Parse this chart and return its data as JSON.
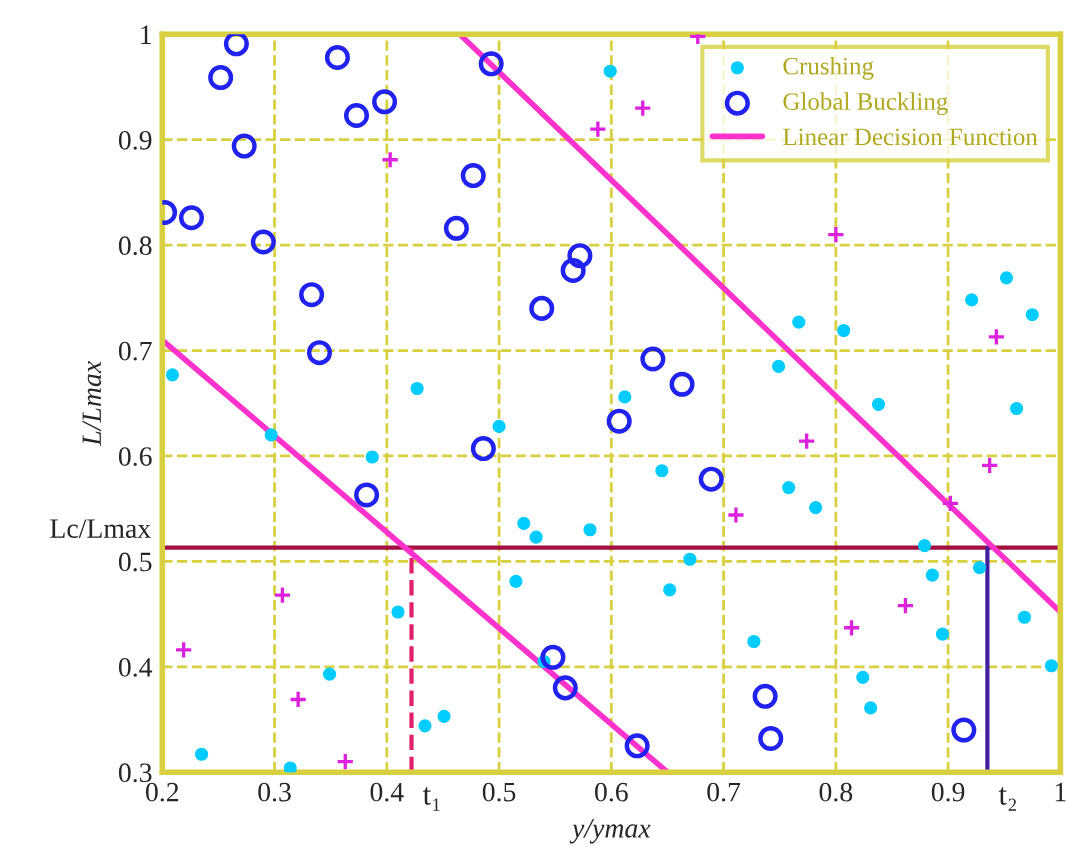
{
  "chart_data": {
    "type": "scatter",
    "xlabel": "y/ymax",
    "ylabel": "L/Lmax",
    "xlim": [
      0.2,
      1.0
    ],
    "ylim": [
      0.3,
      1.0
    ],
    "xticks": [
      0.2,
      0.3,
      0.4,
      0.5,
      0.6,
      0.7,
      0.8,
      0.9,
      1
    ],
    "yticks": [
      0.3,
      0.4,
      0.5,
      0.6,
      0.7,
      0.8,
      0.9,
      1
    ],
    "grid": true,
    "legend": "top right",
    "series": [
      {
        "name": "Crushing",
        "marker": "circle",
        "color": "#00ccff",
        "x": [
          0.209,
          0.427,
          0.599,
          0.767,
          0.807,
          0.749,
          0.838,
          0.921,
          0.952,
          0.975,
          0.961,
          0.612,
          0.297,
          0.387,
          0.5,
          0.522,
          0.533,
          0.515,
          0.41,
          0.349,
          0.235,
          0.314,
          0.434,
          0.451,
          0.54,
          0.645,
          0.758,
          0.782,
          0.581,
          0.67,
          0.652,
          0.879,
          0.886,
          0.928,
          0.968,
          0.895,
          0.992,
          0.727,
          0.824,
          0.831
        ],
        "values": [
          0.677,
          0.664,
          0.965,
          0.727,
          0.719,
          0.685,
          0.649,
          0.748,
          0.769,
          0.734,
          0.645,
          0.656,
          0.62,
          0.599,
          0.628,
          0.536,
          0.523,
          0.481,
          0.452,
          0.393,
          0.317,
          0.304,
          0.344,
          0.353,
          0.405,
          0.586,
          0.57,
          0.551,
          0.53,
          0.502,
          0.473,
          0.515,
          0.487,
          0.494,
          0.447,
          0.431,
          0.401,
          0.424,
          0.39,
          0.361
        ]
      },
      {
        "name": "Global Buckling",
        "marker": "circle_open",
        "color": "#2222ee",
        "x": [
          0.266,
          0.252,
          0.356,
          0.373,
          0.398,
          0.273,
          0.202,
          0.226,
          0.29,
          0.333,
          0.34,
          0.477,
          0.462,
          0.493,
          0.538,
          0.572,
          0.566,
          0.637,
          0.663,
          0.607,
          0.486,
          0.382,
          0.689,
          0.548,
          0.559,
          0.623,
          0.737,
          0.742,
          0.914
        ],
        "values": [
          0.991,
          0.959,
          0.978,
          0.923,
          0.936,
          0.894,
          0.831,
          0.826,
          0.803,
          0.753,
          0.698,
          0.866,
          0.816,
          0.972,
          0.74,
          0.79,
          0.776,
          0.692,
          0.668,
          0.633,
          0.607,
          0.563,
          0.578,
          0.409,
          0.38,
          0.325,
          0.372,
          0.332,
          0.34
        ]
      },
      {
        "marker": "cross",
        "color": "#dd22dd",
        "x": [
          0.403,
          0.677,
          0.628,
          0.588,
          0.8,
          0.943,
          0.219,
          0.307,
          0.321,
          0.363,
          0.774,
          0.711,
          0.937,
          0.902,
          0.862,
          0.814
        ],
        "values": [
          0.881,
          0.998,
          0.93,
          0.91,
          0.81,
          0.713,
          0.416,
          0.468,
          0.369,
          0.31,
          0.614,
          0.544,
          0.591,
          0.555,
          0.458,
          0.437
        ]
      },
      {
        "name": "Linear Decision Function",
        "type": "line",
        "color": "#ff33cc",
        "x": [
          0.2,
          0.65
        ],
        "values": [
          0.71,
          0.3
        ]
      },
      {
        "type": "line",
        "color": "#ff33cc",
        "x": [
          0.465,
          1.0
        ],
        "values": [
          1.0,
          0.452
        ]
      }
    ],
    "ref_lines": [
      {
        "axis": "y",
        "value": 0.513,
        "label": "Lc/Lmax",
        "color": "#a01040",
        "line_style": "solid"
      },
      {
        "axis": "x",
        "value": 0.422,
        "label": "t₁",
        "color": "#e0206a",
        "line_style": "dashed"
      },
      {
        "axis": "x",
        "value": 0.935,
        "label": "t₂",
        "color": "#4020a0",
        "line_style": "solid"
      }
    ]
  }
}
